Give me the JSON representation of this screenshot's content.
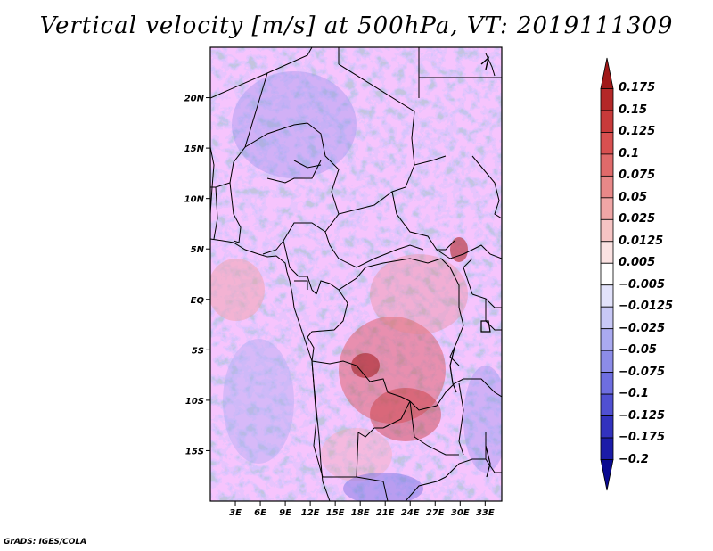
{
  "title": "Vertical velocity [m/s] at 500hPa, VT: 2019111309",
  "footer": "GrADS: IGES/COLA",
  "map": {
    "lat_ticks": [
      "20N",
      "15N",
      "10N",
      "5N",
      "EQ",
      "5S",
      "10S",
      "15S"
    ],
    "lon_ticks": [
      "3E",
      "6E",
      "9E",
      "12E",
      "15E",
      "18E",
      "21E",
      "24E",
      "27E",
      "30E",
      "33E"
    ],
    "lat_values": [
      20,
      15,
      10,
      5,
      0,
      -5,
      -10,
      -15
    ],
    "lon_values": [
      3,
      6,
      9,
      12,
      15,
      18,
      21,
      24,
      27,
      30,
      33
    ],
    "lon_range": [
      0,
      35
    ],
    "lat_range": [
      -20,
      25
    ]
  },
  "colorbar": {
    "labels": [
      "0.175",
      "0.15",
      "0.125",
      "0.1",
      "0.075",
      "0.05",
      "0.025",
      "0.0125",
      "0.005",
      "−0.005",
      "−0.0125",
      "−0.025",
      "−0.05",
      "−0.075",
      "−0.1",
      "−0.125",
      "−0.175",
      "−0.2"
    ],
    "colors": [
      "#a01818",
      "#b42828",
      "#c83a3a",
      "#d85050",
      "#e06a6a",
      "#e88888",
      "#f0a6a6",
      "#f6c4c4",
      "#fbe2e2",
      "#ffffff",
      "#e2e2fb",
      "#c8c8f6",
      "#aaaaf0",
      "#8c8ce8",
      "#6e6ee0",
      "#5050d2",
      "#3232be",
      "#1c1ca8",
      "#0a0a90"
    ]
  }
}
